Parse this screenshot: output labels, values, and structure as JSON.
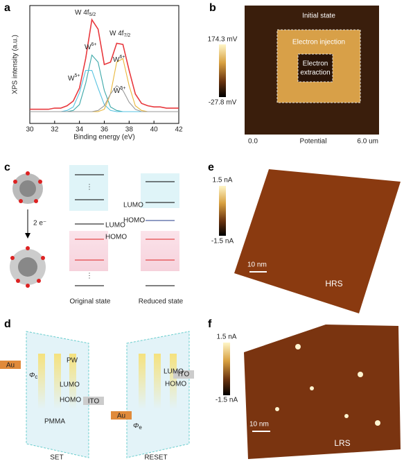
{
  "chart_data": {
    "type": "line",
    "x_label": "Binding energy (eV)",
    "y_label": "XPS intensity (a.u.)",
    "x": [
      30,
      30.5,
      31,
      31.5,
      32,
      32.5,
      33,
      33.5,
      34,
      34.5,
      35,
      35.5,
      36,
      36.5,
      37,
      37.5,
      38,
      38.5,
      39,
      39.5,
      40,
      40.5,
      41,
      41.5,
      42
    ],
    "series": [
      {
        "color": "#e8383d",
        "values": [
          12,
          12,
          12,
          12,
          13,
          13,
          15,
          19,
          30,
          55,
          88,
          80,
          50,
          52,
          68,
          67,
          45,
          25,
          17,
          15,
          14,
          14,
          13,
          13,
          13
        ]
      },
      {
        "color": "#3aa7a8",
        "values": [
          10,
          10,
          10,
          10,
          10,
          10,
          10,
          11,
          16,
          34,
          58,
          52,
          28,
          14,
          11,
          10,
          10,
          10,
          10,
          10,
          10,
          10,
          10,
          10,
          10
        ]
      },
      {
        "color": "#56c2e0",
        "values": [
          10,
          10,
          10,
          10,
          10,
          10,
          11,
          14,
          26,
          45,
          45,
          30,
          16,
          11,
          10,
          10,
          10,
          10,
          10,
          10,
          10,
          10,
          10,
          10,
          10
        ]
      },
      {
        "color": "#e9b73a",
        "values": [
          10,
          10,
          10,
          10,
          10,
          10,
          10,
          10,
          10,
          10,
          10,
          10,
          12,
          25,
          52,
          55,
          32,
          15,
          11,
          10,
          10,
          10,
          10,
          10,
          10
        ]
      },
      {
        "color": "#9a9a9a",
        "values": [
          10,
          10,
          10,
          10,
          10,
          10,
          10,
          10,
          10,
          10,
          10,
          11,
          15,
          25,
          32,
          28,
          18,
          12,
          10,
          10,
          10,
          10,
          10,
          10,
          10
        ]
      }
    ],
    "annotations": [
      {
        "text": "W 4f",
        "sub": "5/2"
      },
      {
        "text": "W 4f",
        "sub": "7/2"
      },
      {
        "text": "W",
        "sup": "6+"
      },
      {
        "text": "W",
        "sup": "6+"
      },
      {
        "text": "W",
        "sup": "5+"
      },
      {
        "text": "W",
        "sup": "5+"
      }
    ],
    "xlim": [
      30,
      42
    ],
    "xticks": [
      30,
      32,
      34,
      36,
      38,
      40,
      42
    ],
    "ylim": [
      0,
      100
    ]
  },
  "panel_labels": [
    "a",
    "b",
    "c",
    "d",
    "e",
    "f"
  ],
  "panel_b": {
    "colorbar_max": "174.3 mV",
    "colorbar_min": "-27.8 mV",
    "initial_state": "Initial state",
    "injection": "Electron injection",
    "extraction": [
      "Electron",
      "extraction"
    ],
    "axis_start": "0.0",
    "axis_label": "Potential",
    "axis_end": "6.0 um"
  },
  "panel_c": {
    "electrons": "2 e⁻",
    "lumo_left": "LUMO",
    "homo_left": "HOMO",
    "lumo_right": "LUMO",
    "homo_right": "HOMO",
    "original": "Original state",
    "reduced": "Reduced state"
  },
  "panel_d": {
    "au_left": "Au",
    "phi": "Φ",
    "phi_c": "c",
    "pw": "PW",
    "lumo_left": "LUMO",
    "homo_left": "HOMO",
    "ito_left": "ITO",
    "pmma": "PMMA",
    "set": "SET",
    "ito_right": "ITO",
    "lumo_right": "LUMO",
    "homo_right": "HOMO",
    "au_right": "Au",
    "phi_e": "e",
    "reset": "RESET"
  },
  "panel_e": {
    "colorbar_max": "1.5 nA",
    "colorbar_min": "-1.5 nA",
    "scale": "10 nm",
    "state": "HRS"
  },
  "panel_f": {
    "colorbar_max": "1.5 nA",
    "colorbar_min": "-1.5 nA",
    "scale": "10 nm",
    "state": "LRS"
  }
}
